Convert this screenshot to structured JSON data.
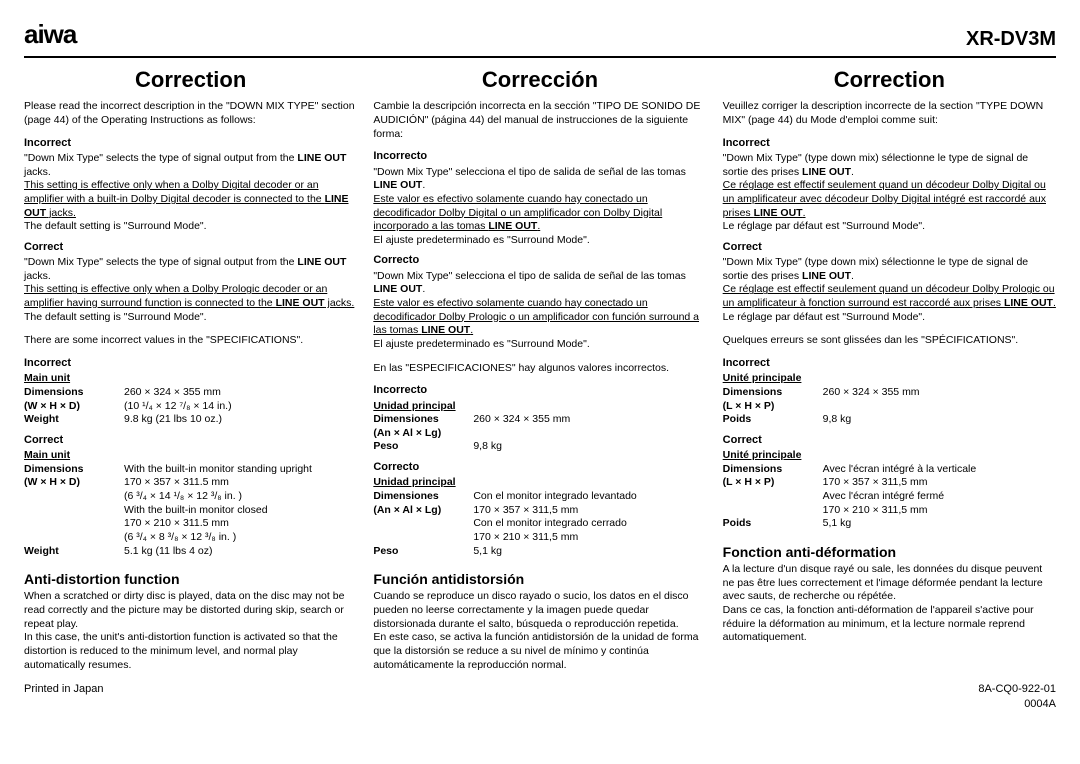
{
  "header": {
    "brand": "aiwa",
    "model": "XR-DV3M"
  },
  "columns": [
    {
      "title": "Correction",
      "intro": "Please read the incorrect description in the \"DOWN MIX TYPE\" section (page 44) of the Operating Instructions as follows:",
      "incorrect_label": "Incorrect",
      "incorrect_p1a": "\"Down Mix Type\" selects the type of signal output from the ",
      "incorrect_p1b": "LINE OUT",
      "incorrect_p1c": " jacks.",
      "incorrect_u1": "This setting is effective only when a Dolby Digital decoder or an amplifier with a built-in Dolby Digital decoder is connected to the ",
      "incorrect_u1b": "LINE OUT",
      "incorrect_u1c": " jacks.",
      "incorrect_p2": "The default setting is \"Surround Mode\".",
      "correct_label": "Correct",
      "correct_p1a": "\"Down Mix Type\" selects the type of signal output from the ",
      "correct_p1b": "LINE OUT",
      "correct_p1c": " jacks.",
      "correct_u1": "This setting is effective only when a Dolby Prologic decoder or an amplifier having surround function is connected to the ",
      "correct_u1b": "LINE OUT",
      "correct_u1c": " jacks.",
      "correct_p2": "The default setting is \"Surround Mode\".",
      "spec_intro": "There are some incorrect values in the \"SPECIFICATIONS\".",
      "spec_inc_label": "Incorrect",
      "spec_inc_unit": "Main unit",
      "spec_inc_dim_l": "Dimensions",
      "spec_inc_dim_v": "260 × 324 × 355 mm",
      "spec_inc_whd": "(W × H × D)",
      "spec_inc_whd_v": "(10 ¹/₄ × 12 ⁷/₈ × 14 in.)",
      "spec_inc_wt_l": "Weight",
      "spec_inc_wt_v": "9.8 kg (21 lbs 10 oz.)",
      "spec_cor_label": "Correct",
      "spec_cor_unit": "Main unit",
      "spec_cor_dim_l": "Dimensions",
      "spec_cor_dim_v": "With the built-in monitor standing upright",
      "spec_cor_whd": "(W × H × D)",
      "spec_cor_l1": "170 × 357 × 311.5 mm",
      "spec_cor_l2": "(6 ³/₄ × 14 ¹/₈ × 12 ³/₈ in. )",
      "spec_cor_l3": "With the built-in monitor closed",
      "spec_cor_l4": "170 × 210 × 311.5 mm",
      "spec_cor_l5": "(6 ³/₄ × 8 ³/₈ × 12 ³/₈ in. )",
      "spec_cor_wt_l": "Weight",
      "spec_cor_wt_v": "5.1 kg (11 lbs 4 oz)",
      "anti_title": "Anti-distortion function",
      "anti_body": "When a scratched or dirty disc is played, data on the disc may not be read correctly and the picture may be distorted during skip, search or repeat play.\nIn this case, the unit's anti-distortion function is activated so that the distortion is reduced to the minimum level, and normal play automatically resumes."
    },
    {
      "title": "Corrección",
      "intro": "Cambie la descripción incorrecta en la sección \"TIPO DE SONIDO DE AUDICIÓN\" (página 44) del manual de instrucciones de la siguiente forma:",
      "incorrect_label": "Incorrecto",
      "incorrect_p1a": "\"Down Mix Type\" selecciona el tipo de salida de señal de las tomas ",
      "incorrect_p1b": "LINE OUT",
      "incorrect_p1c": ".",
      "incorrect_u1": "Este valor es efectivo solamente cuando hay conectado un decodificador Dolby Digital o un amplificador con Dolby Digital incorporado a las tomas ",
      "incorrect_u1b": "LINE OUT",
      "incorrect_u1c": ".",
      "incorrect_p2": "El ajuste predeterminado es \"Surround Mode\".",
      "correct_label": "Correcto",
      "correct_p1a": "\"Down Mix Type\" selecciona el tipo de salida de señal de las tomas ",
      "correct_p1b": "LINE OUT",
      "correct_p1c": ".",
      "correct_u1": "Este valor es efectivo solamente cuando hay conectado un decodificador Dolby Prologic o un amplificador con función surround a las tomas ",
      "correct_u1b": "LINE OUT",
      "correct_u1c": ".",
      "correct_p2": "El ajuste predeterminado es \"Surround Mode\".",
      "spec_intro": "En las \"ESPECIFICACIONES\" hay algunos valores incorrectos.",
      "spec_inc_label": "Incorrecto",
      "spec_inc_unit": "Unidad principal",
      "spec_inc_dim_l": "Dimensiones",
      "spec_inc_dim_v": "260 × 324 × 355 mm",
      "spec_inc_whd": "(An × Al × Lg)",
      "spec_inc_whd_v": "",
      "spec_inc_wt_l": "Peso",
      "spec_inc_wt_v": "9,8 kg",
      "spec_cor_label": "Correcto",
      "spec_cor_unit": "Unidad principal",
      "spec_cor_dim_l": "Dimensiones",
      "spec_cor_dim_v": "Con el monitor integrado levantado",
      "spec_cor_whd": "(An × Al × Lg)",
      "spec_cor_l1": "170 × 357 × 311,5 mm",
      "spec_cor_l2": "",
      "spec_cor_l3": "Con el monitor integrado cerrado",
      "spec_cor_l4": "170 × 210 × 311,5 mm",
      "spec_cor_l5": "",
      "spec_cor_wt_l": "Peso",
      "spec_cor_wt_v": "5,1 kg",
      "anti_title": "Función antidistorsión",
      "anti_body": "Cuando se reproduce un disco rayado o sucio, los datos en el disco pueden no leerse correctamente y la imagen puede quedar distorsionada durante el salto, búsqueda o reproducción repetida.\nEn este caso, se activa la función antidistorsión de la unidad de forma que la distorsión se reduce a su nivel de mínimo y continúa automáticamente la reproducción normal."
    },
    {
      "title": "Correction",
      "intro": "Veuillez corriger la description incorrecte de la section \"TYPE DOWN MIX\" (page 44) du Mode d'emploi comme suit:",
      "incorrect_label": "Incorrect",
      "incorrect_p1a": "\"Down Mix Type\" (type down mix) sélectionne le type de signal de sortie des prises ",
      "incorrect_p1b": "LINE OUT",
      "incorrect_p1c": ".",
      "incorrect_u1": "Ce réglage est effectif seulement quand un décodeur Dolby Digital ou un amplificateur avec décodeur Dolby Digital intégré est raccordé aux prises ",
      "incorrect_u1b": "LINE OUT",
      "incorrect_u1c": ".",
      "incorrect_p2": "Le réglage par défaut est \"Surround Mode\".",
      "correct_label": "Correct",
      "correct_p1a": "\"Down Mix Type\" (type down mix) sélectionne le type de signal de sortie des prises ",
      "correct_p1b": "LINE OUT",
      "correct_p1c": ".",
      "correct_u1": "Ce réglage est effectif seulement quand un décodeur Dolby Prologic ou un amplificateur à fonction surround est raccordé aux prises ",
      "correct_u1b": "LINE OUT",
      "correct_u1c": ".",
      "correct_p2": "Le réglage par défaut est \"Surround Mode\".",
      "spec_intro": "Quelques erreurs se sont glissées dan les \"SPÉCIFICATIONS\".",
      "spec_inc_label": "Incorrect",
      "spec_inc_unit": "Unité principale",
      "spec_inc_dim_l": "Dimensions",
      "spec_inc_dim_v": "260 × 324 × 355 mm",
      "spec_inc_whd": "(L × H × P)",
      "spec_inc_whd_v": "",
      "spec_inc_wt_l": "Poids",
      "spec_inc_wt_v": "9,8 kg",
      "spec_cor_label": "Correct",
      "spec_cor_unit": "Unité principale",
      "spec_cor_dim_l": "Dimensions",
      "spec_cor_dim_v": "Avec l'écran intégré à la verticale",
      "spec_cor_whd": "(L × H × P)",
      "spec_cor_l1": "170 × 357 × 311,5 mm",
      "spec_cor_l2": "",
      "spec_cor_l3": "Avec l'écran intégré fermé",
      "spec_cor_l4": "170 × 210 × 311,5 mm",
      "spec_cor_l5": "",
      "spec_cor_wt_l": "Poids",
      "spec_cor_wt_v": "5,1 kg",
      "anti_title": "Fonction anti-déformation",
      "anti_body": "A la lecture d'un disque rayé ou sale, les données du disque peuvent ne pas être lues correctement et l'image déformée pendant la lecture avec sauts, de recherche ou répétée.\nDans ce cas, la fonction anti-déformation de l'appareil s'active pour réduire la déformation au minimum, et la lecture normale reprend automatiquement."
    }
  ],
  "footer": {
    "left": "Printed in Japan",
    "right1": "8A-CQ0-922-01",
    "right2": "0004A"
  }
}
